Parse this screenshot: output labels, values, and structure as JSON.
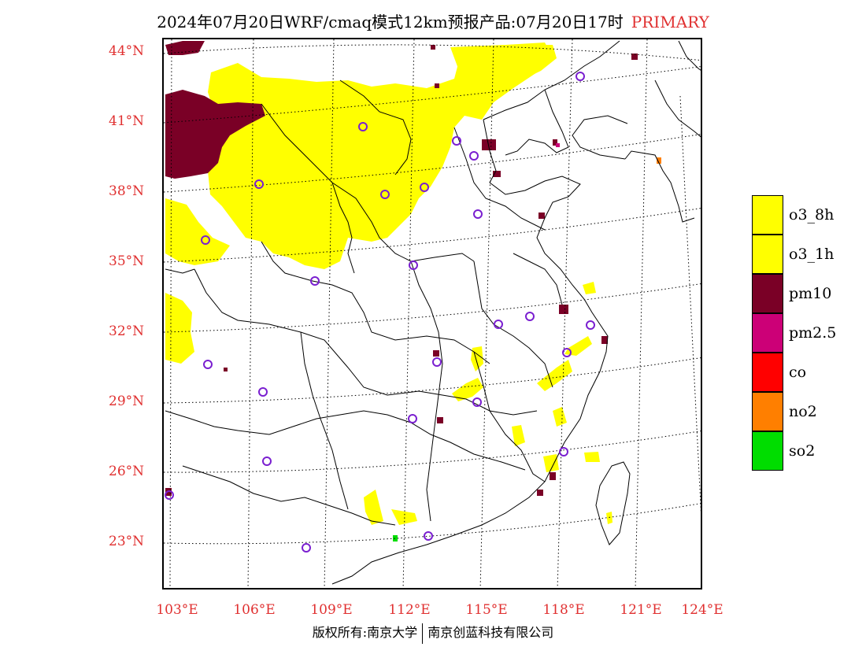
{
  "title": {
    "main": "2024年07月20日WRF/cmaq模式12km预报产品:07月20日17时",
    "tag": "PRIMARY"
  },
  "colors": {
    "o3_8h": "#ffff00",
    "o3_1h": "#ffff00",
    "pm10": "#7a0026",
    "pm2_5": "#cc0077",
    "co": "#ff0000",
    "no2": "#ff7f00",
    "so2": "#00dd00",
    "axis_label": "#e03030",
    "station": "#7a1fd0"
  },
  "latitude_labels": [
    {
      "id": "44",
      "text": "44°N"
    },
    {
      "id": "41",
      "text": "41°N"
    },
    {
      "id": "38",
      "text": "38°N"
    },
    {
      "id": "35",
      "text": "35°N"
    },
    {
      "id": "32",
      "text": "32°N"
    },
    {
      "id": "29",
      "text": "29°N"
    },
    {
      "id": "26",
      "text": "26°N"
    },
    {
      "id": "23",
      "text": "23°N"
    }
  ],
  "longitude_labels": [
    {
      "id": "103",
      "text": "103°E"
    },
    {
      "id": "106",
      "text": "106°E"
    },
    {
      "id": "109",
      "text": "109°E"
    },
    {
      "id": "112",
      "text": "112°E"
    },
    {
      "id": "115",
      "text": "115°E"
    },
    {
      "id": "118",
      "text": "118°E"
    },
    {
      "id": "121",
      "text": "121°E"
    },
    {
      "id": "124",
      "text": "124°E"
    }
  ],
  "legend": [
    {
      "key": "o3_8h",
      "label": "o3_8h",
      "color": "#ffff00"
    },
    {
      "key": "o3_1h",
      "label": "o3_1h",
      "color": "#ffff00"
    },
    {
      "key": "pm10",
      "label": "pm10",
      "color": "#7a0026"
    },
    {
      "key": "pm2_5",
      "label": "pm2.5",
      "color": "#cc0077"
    },
    {
      "key": "co",
      "label": "co",
      "color": "#ff0000"
    },
    {
      "key": "no2",
      "label": "no2",
      "color": "#ff7f00"
    },
    {
      "key": "so2",
      "label": "so2",
      "color": "#00dd00"
    }
  ],
  "footer": {
    "left": "版权所有:南京大学",
    "right": "南京创蓝科技有限公司"
  }
}
